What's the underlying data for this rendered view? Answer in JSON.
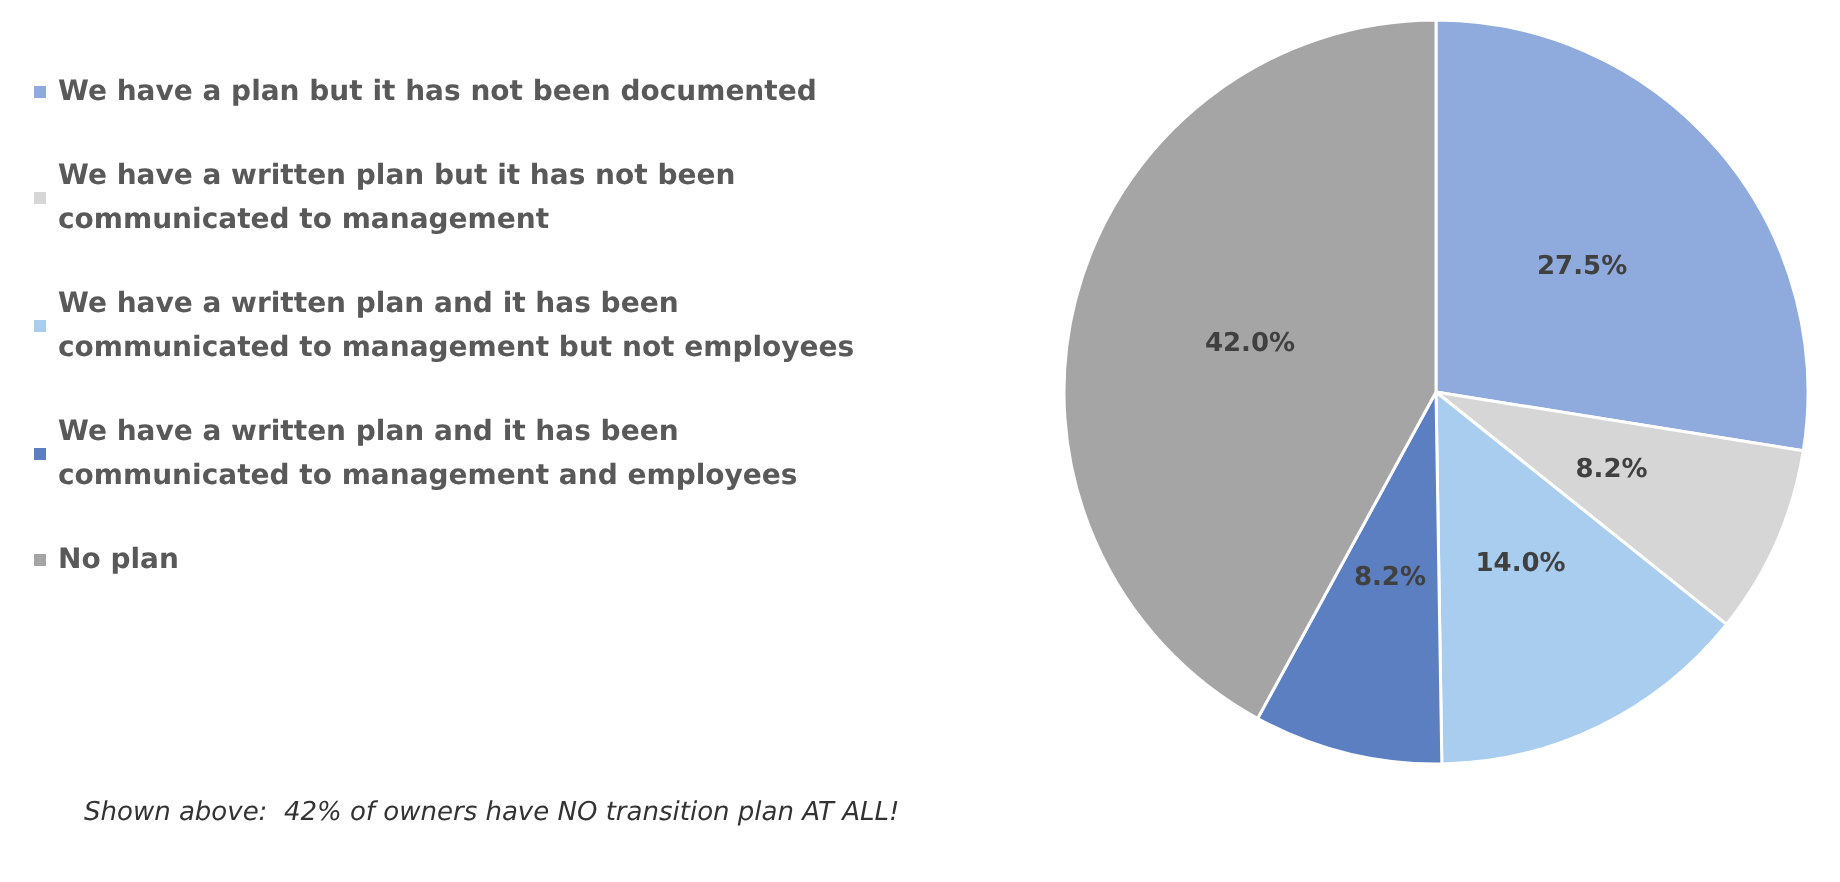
{
  "chart_data": {
    "type": "pie",
    "categories": [
      "We have a plan but it has not been documented",
      "We have a written plan but it has not been communicated to management",
      "We have a written plan and it has been communicated to management but not employees",
      "We have a written plan and it has been communicated to management and employees",
      "No plan"
    ],
    "values": [
      27.5,
      8.2,
      14.0,
      8.2,
      42.0
    ],
    "value_labels": [
      "27.5%",
      "8.2%",
      "14.0%",
      "8.2%",
      "42.0%"
    ],
    "colors": [
      "#8faadc",
      "#d6d6d6",
      "#a9cdee",
      "#5b7fc0",
      "#a5a5a5"
    ],
    "legend": "left",
    "annotations": [
      "Shown above:  42% of owners have NO transition plan AT ALL!"
    ]
  }
}
